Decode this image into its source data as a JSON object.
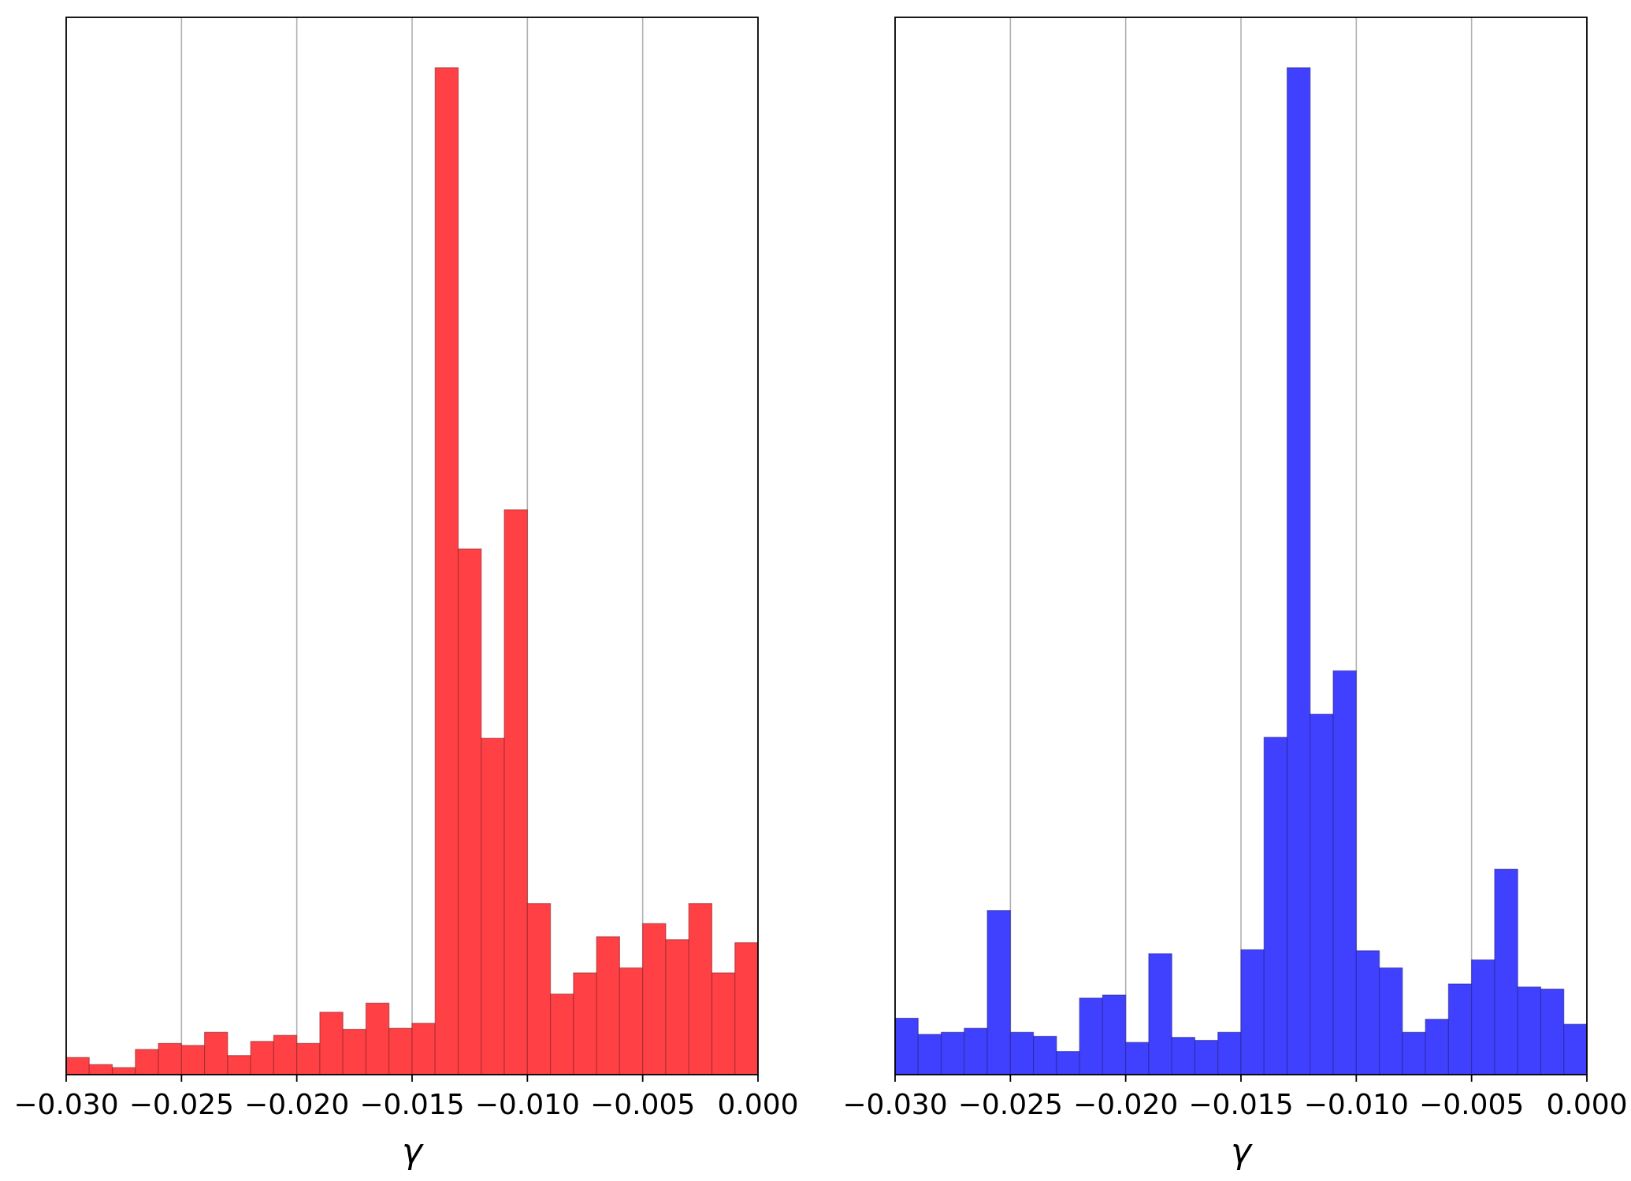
{
  "chart_data": [
    {
      "type": "bar",
      "subtype": "histogram",
      "color": "#ff4044",
      "edge_color": "#8a2226",
      "xlabel": "γ",
      "ylabel": "",
      "title": "",
      "xlim": [
        -0.03,
        0.0
      ],
      "ylim": [
        0,
        1.05
      ],
      "grid": "x",
      "y_ticks_visible": false,
      "xticks": [
        -0.03,
        -0.025,
        -0.02,
        -0.015,
        -0.01,
        -0.005,
        0.0
      ],
      "xtick_labels": [
        "−0.030",
        "−0.025",
        "−0.020",
        "−0.015",
        "−0.010",
        "−0.005",
        "0.000"
      ],
      "bin_width": 0.001,
      "bin_starts": [
        -0.03,
        -0.029,
        -0.028,
        -0.027,
        -0.026,
        -0.025,
        -0.024,
        -0.023,
        -0.022,
        -0.021,
        -0.02,
        -0.019,
        -0.018,
        -0.017,
        -0.016,
        -0.015,
        -0.014,
        -0.013,
        -0.012,
        -0.011,
        -0.01,
        -0.009,
        -0.008,
        -0.007,
        -0.006,
        -0.005,
        -0.004,
        -0.003,
        -0.002,
        -0.001
      ],
      "values": [
        0.017,
        0.01,
        0.007,
        0.025,
        0.031,
        0.029,
        0.042,
        0.019,
        0.033,
        0.039,
        0.031,
        0.062,
        0.045,
        0.071,
        0.046,
        0.051,
        1.0,
        0.522,
        0.334,
        0.561,
        0.17,
        0.08,
        0.101,
        0.137,
        0.106,
        0.15,
        0.134,
        0.17,
        0.101,
        0.131
      ]
    },
    {
      "type": "bar",
      "subtype": "histogram",
      "color": "#4040ff",
      "edge_color": "#22228a",
      "xlabel": "γ",
      "ylabel": "",
      "title": "",
      "xlim": [
        -0.03,
        0.0
      ],
      "ylim": [
        0,
        1.05
      ],
      "grid": "x",
      "y_ticks_visible": false,
      "xticks": [
        -0.03,
        -0.025,
        -0.02,
        -0.015,
        -0.01,
        -0.005,
        0.0
      ],
      "xtick_labels": [
        "−0.030",
        "−0.025",
        "−0.020",
        "−0.015",
        "−0.010",
        "−0.005",
        "0.000"
      ],
      "bin_width": 0.001,
      "bin_starts": [
        -0.03,
        -0.029,
        -0.028,
        -0.027,
        -0.026,
        -0.025,
        -0.024,
        -0.023,
        -0.022,
        -0.021,
        -0.02,
        -0.019,
        -0.018,
        -0.017,
        -0.016,
        -0.015,
        -0.014,
        -0.013,
        -0.012,
        -0.011,
        -0.01,
        -0.009,
        -0.008,
        -0.007,
        -0.006,
        -0.005,
        -0.004,
        -0.003,
        -0.002,
        -0.001
      ],
      "values": [
        0.056,
        0.04,
        0.042,
        0.046,
        0.163,
        0.042,
        0.038,
        0.023,
        0.076,
        0.079,
        0.032,
        0.12,
        0.037,
        0.034,
        0.042,
        0.124,
        0.335,
        1.0,
        0.358,
        0.401,
        0.123,
        0.106,
        0.042,
        0.055,
        0.09,
        0.114,
        0.204,
        0.087,
        0.085,
        0.05
      ]
    }
  ]
}
